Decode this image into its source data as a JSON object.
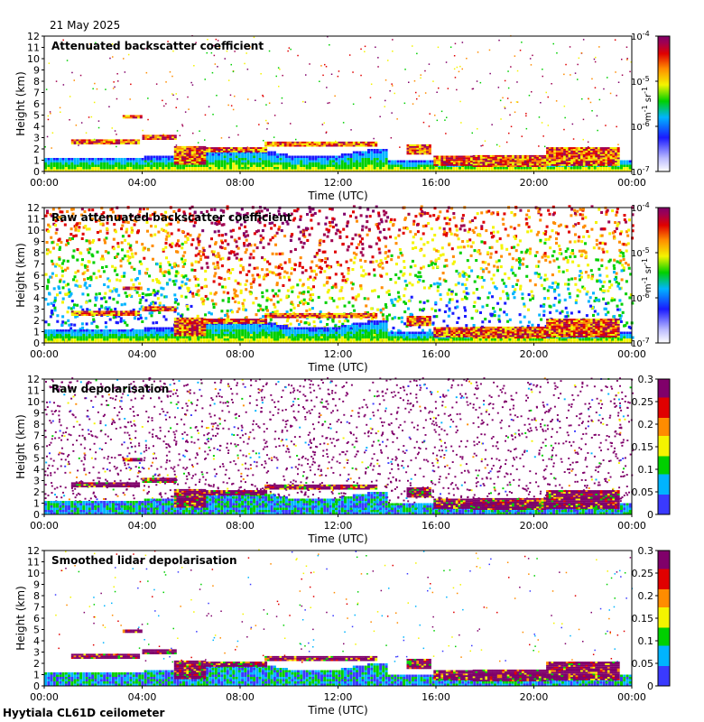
{
  "date_label": "21 May 2025",
  "footer_label": "Hyytiala CL61D ceilometer",
  "chart_data": [
    {
      "type": "heatmap",
      "title": "Attenuated backscatter coefficient",
      "xlabel": "Time (UTC)",
      "ylabel": "Height (km)",
      "xticks": [
        "00:00",
        "04:00",
        "08:00",
        "12:00",
        "16:00",
        "20:00",
        "00:00"
      ],
      "yticks": [
        "0",
        "1",
        "2",
        "3",
        "4",
        "5",
        "6",
        "7",
        "8",
        "9",
        "10",
        "11",
        "12"
      ],
      "ylim": [
        0,
        12
      ],
      "colorbar": {
        "ticks": [
          "10^-7",
          "10^-6",
          "10^-5",
          "10^-4"
        ],
        "unit": "m^-1 sr^-1",
        "scale": "log"
      }
    },
    {
      "type": "heatmap",
      "title": "Raw attenuated backscatter coefficient",
      "xlabel": "Time (UTC)",
      "ylabel": "Height (km)",
      "xticks": [
        "00:00",
        "04:00",
        "08:00",
        "12:00",
        "16:00",
        "20:00",
        "00:00"
      ],
      "yticks": [
        "0",
        "1",
        "2",
        "3",
        "4",
        "5",
        "6",
        "7",
        "8",
        "9",
        "10",
        "11",
        "12"
      ],
      "ylim": [
        0,
        12
      ],
      "colorbar": {
        "ticks": [
          "10^-7",
          "10^-6",
          "10^-5",
          "10^-4"
        ],
        "unit": "m^-1 sr^-1",
        "scale": "log"
      }
    },
    {
      "type": "heatmap",
      "title": "Raw depolarisation",
      "xlabel": "Time (UTC)",
      "ylabel": "Height (km)",
      "xticks": [
        "00:00",
        "04:00",
        "08:00",
        "12:00",
        "16:00",
        "20:00",
        "00:00"
      ],
      "yticks": [
        "0",
        "1",
        "2",
        "3",
        "4",
        "5",
        "6",
        "7",
        "8",
        "9",
        "10",
        "11",
        "12"
      ],
      "ylim": [
        0,
        12
      ],
      "colorbar": {
        "ticks": [
          "0",
          "0.05",
          "0.1",
          "0.15",
          "0.2",
          "0.25",
          "0.3"
        ],
        "unit": "",
        "scale": "linear"
      }
    },
    {
      "type": "heatmap",
      "title": "Smoothed lidar depolarisation",
      "xlabel": "Time (UTC)",
      "ylabel": "Height (km)",
      "xticks": [
        "00:00",
        "04:00",
        "08:00",
        "12:00",
        "16:00",
        "20:00",
        "00:00"
      ],
      "yticks": [
        "0",
        "1",
        "2",
        "3",
        "4",
        "5",
        "6",
        "7",
        "8",
        "9",
        "10",
        "11",
        "12"
      ],
      "ylim": [
        0,
        12
      ],
      "colorbar": {
        "ticks": [
          "0",
          "0.05",
          "0.1",
          "0.15",
          "0.2",
          "0.25",
          "0.3"
        ],
        "unit": "",
        "scale": "linear"
      }
    }
  ]
}
